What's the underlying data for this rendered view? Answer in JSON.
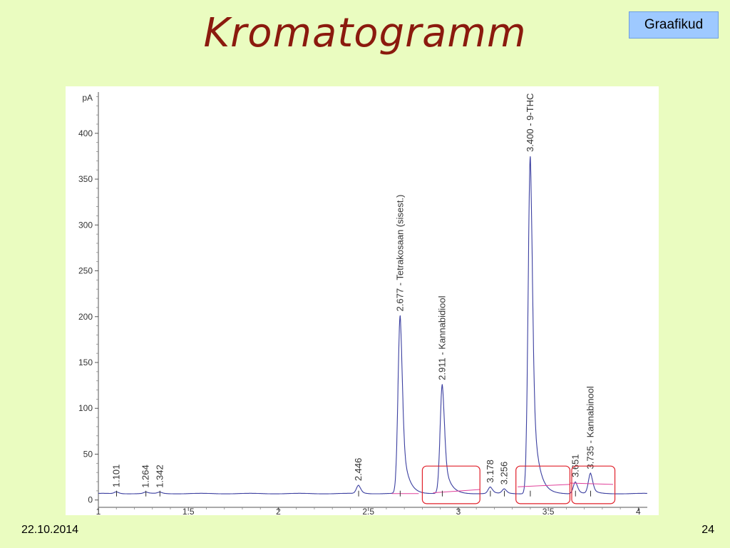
{
  "slide": {
    "title": "Kromatogramm",
    "badge": "Graafikud",
    "date": "22.10.2014",
    "page": "24"
  },
  "colors": {
    "background": "#eafcc0",
    "title": "#8b1a0e",
    "badge": "#9ec9ff",
    "signal": "#3b3fa0",
    "baseline": "#e0409a",
    "highlight_box": "#e0202a"
  },
  "chart_data": {
    "type": "line",
    "title": "",
    "xlabel": "",
    "ylabel": "pA",
    "xlim": [
      1,
      4.05
    ],
    "ylim": [
      -8,
      445
    ],
    "x_ticks": [
      1,
      1.5,
      2,
      2.5,
      3,
      3.5,
      4
    ],
    "x_tick_labels": [
      "1",
      "1.5",
      "2",
      "2.5",
      "3",
      "3.5",
      "4"
    ],
    "y_ticks": [
      0,
      50,
      100,
      150,
      200,
      250,
      300,
      350,
      400
    ],
    "y_tick_labels": [
      "0",
      "50",
      "100",
      "150",
      "200",
      "250",
      "300",
      "350",
      "400"
    ],
    "baseline_level": 7,
    "peaks": [
      {
        "rt": 1.101,
        "height": 9,
        "label": "1.101"
      },
      {
        "rt": 1.264,
        "height": 8.5,
        "label": "1.264"
      },
      {
        "rt": 1.342,
        "height": 8.5,
        "label": "1.342"
      },
      {
        "rt": 2.446,
        "height": 16,
        "label": "2.446"
      },
      {
        "rt": 2.677,
        "height": 201,
        "label": "2.677 -  Tetrakosaan (sisest.)"
      },
      {
        "rt": 2.911,
        "height": 126,
        "label": "2.911 -  Kannabidiool"
      },
      {
        "rt": 3.178,
        "height": 14,
        "label": "3.178"
      },
      {
        "rt": 3.256,
        "height": 12,
        "label": "3.256"
      },
      {
        "rt": 3.4,
        "height": 375,
        "label": "3.400 -  9-THC"
      },
      {
        "rt": 3.651,
        "height": 20,
        "label": "3.651"
      },
      {
        "rt": 3.735,
        "height": 29,
        "label": "3.735 -  Kannabinool"
      }
    ],
    "highlight_regions": [
      {
        "x_range": [
          2.8,
          3.12
        ],
        "y_range": [
          -4,
          37
        ]
      },
      {
        "x_range": [
          3.32,
          3.62
        ],
        "y_range": [
          -4,
          37
        ]
      },
      {
        "x_range": [
          3.63,
          3.87
        ],
        "y_range": [
          -4,
          37
        ]
      }
    ]
  }
}
